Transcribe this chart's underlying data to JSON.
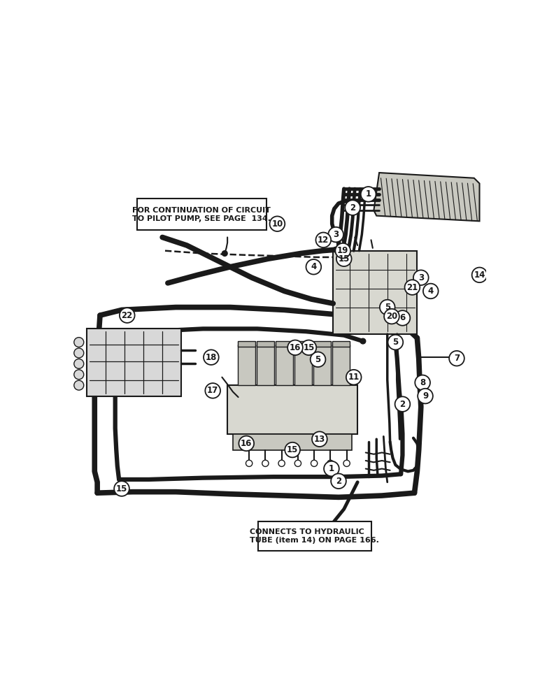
{
  "bg_color": "#ffffff",
  "line_color": "#1a1a1a",
  "note1": "FOR CONTINUATION OF CIRCUIT\nTO PILOT PUMP, SEE PAGE  134.",
  "note2": "CONNECTS TO HYDRAULIC\nTUBE (item 14) ON PAGE 166.",
  "fig_width": 7.72,
  "fig_height": 10.0
}
